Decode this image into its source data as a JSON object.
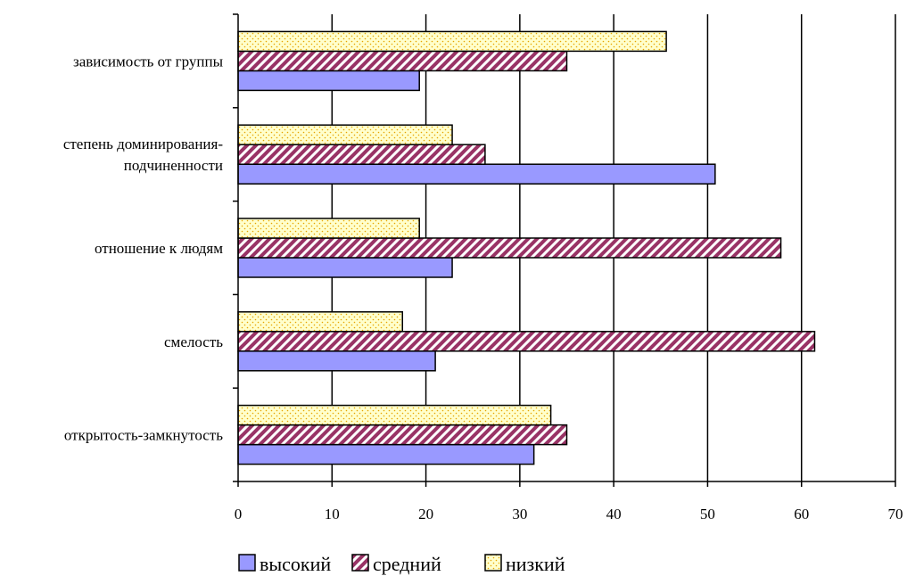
{
  "chart_data": {
    "type": "bar",
    "orientation": "horizontal",
    "title": "",
    "xlabel": "",
    "ylabel": "",
    "categories": [
      [
        "открытость-замкнутость"
      ],
      [
        "смелость"
      ],
      [
        "отношение к людям"
      ],
      [
        "степень доминирования-",
        "подчиненности"
      ],
      [
        "зависимость от группы"
      ]
    ],
    "series": [
      {
        "name": "высокий",
        "values": [
          31.5,
          21,
          22.8,
          50.8,
          19.3
        ],
        "color": "#9999ff",
        "pattern": "solid"
      },
      {
        "name": "средний",
        "values": [
          35,
          61.4,
          57.8,
          26.3,
          35
        ],
        "color": "#993366",
        "pattern": "diagonal-stripes"
      },
      {
        "name": "низкий",
        "values": [
          33.3,
          17.5,
          19.3,
          22.8,
          45.6
        ],
        "color": "#ffffcc",
        "pattern": "dots"
      }
    ],
    "xlim": [
      0,
      70
    ],
    "xticks": [
      0,
      10,
      20,
      30,
      40,
      50,
      60,
      70
    ],
    "grid": "vertical",
    "legend": "bottom"
  }
}
